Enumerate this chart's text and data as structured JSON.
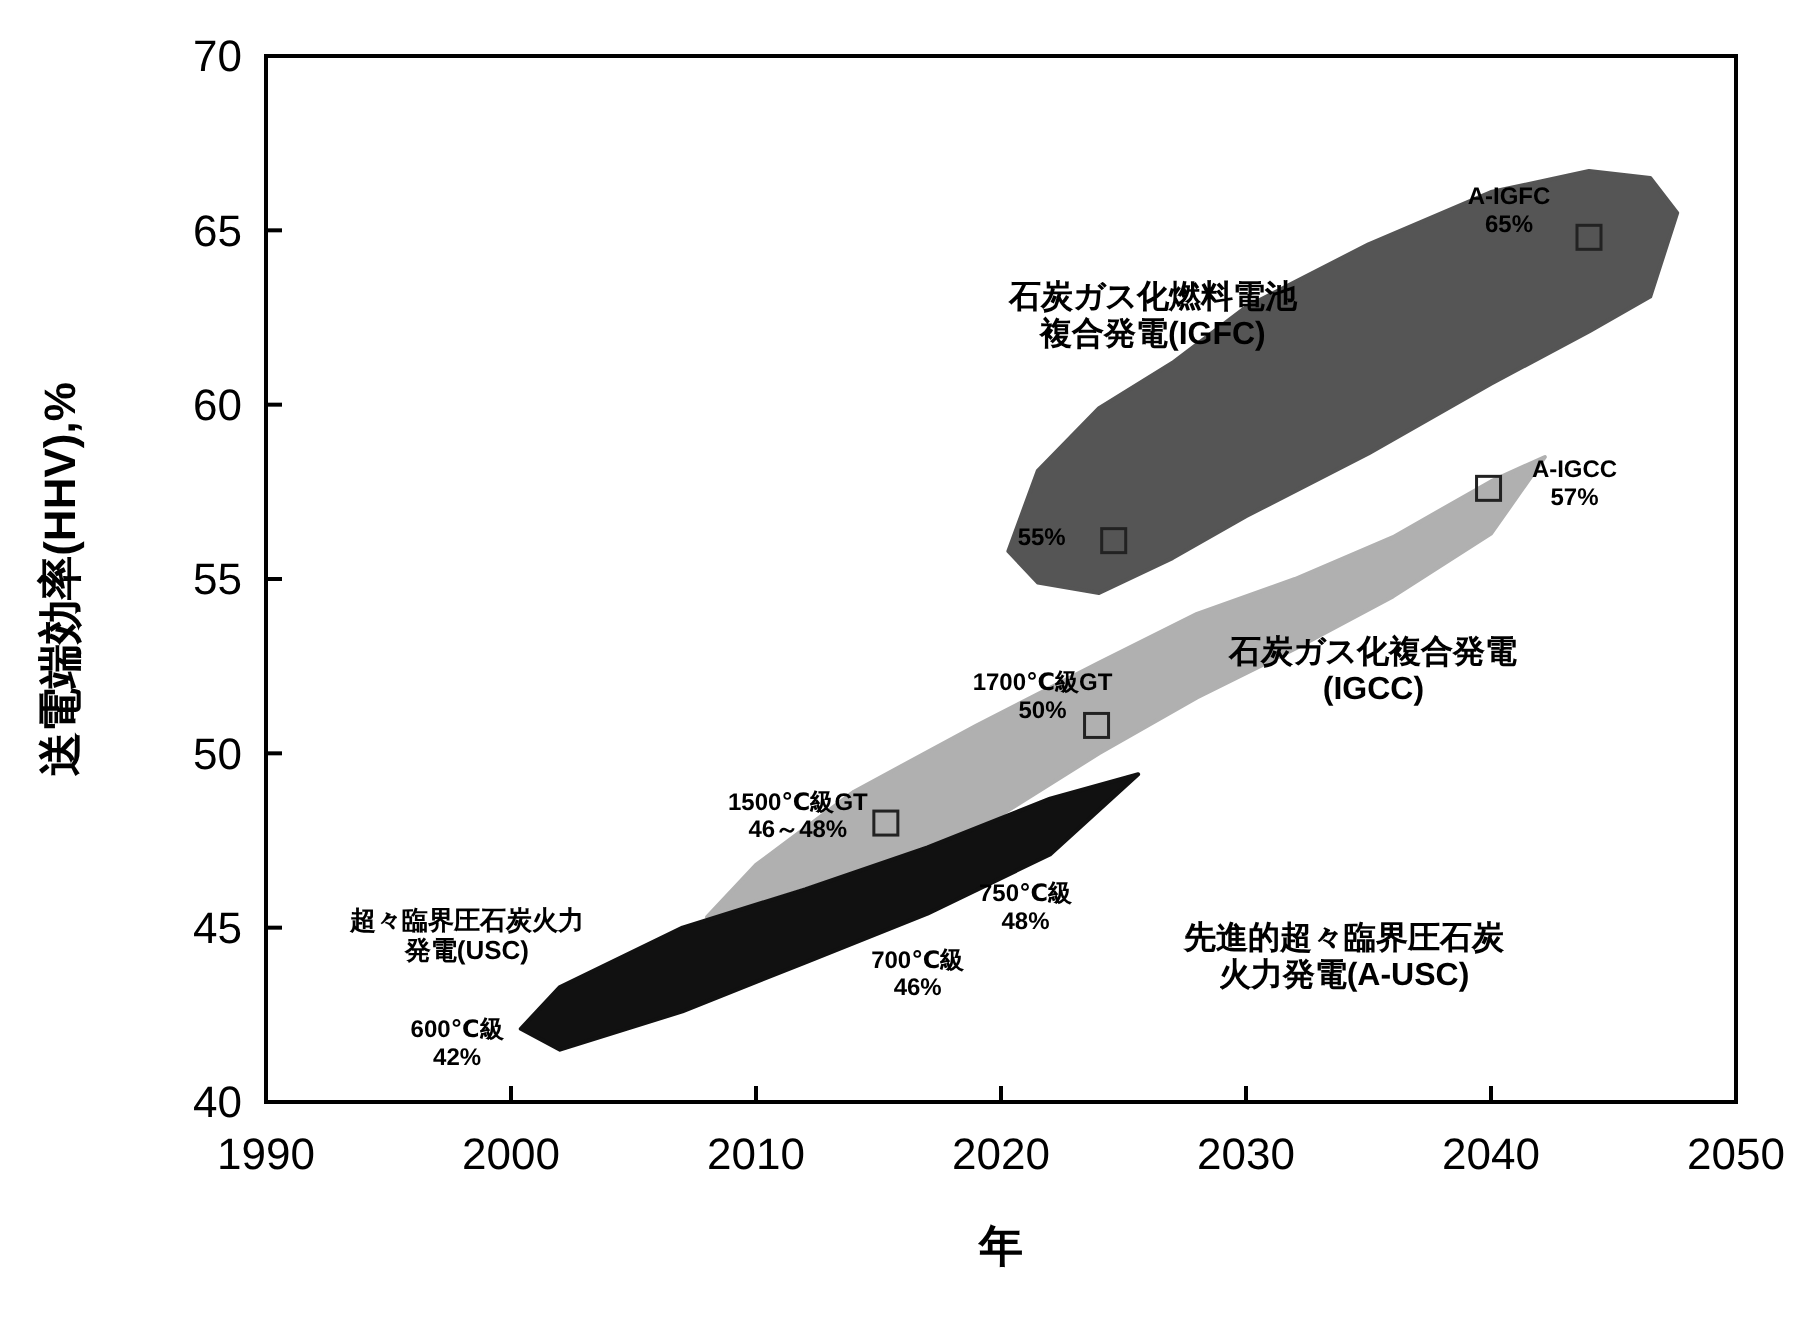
{
  "chart_data": {
    "type": "area",
    "xlabel": "年",
    "ylabel": "送電端効率(HHV),%",
    "xlim": [
      1990,
      2050
    ],
    "ylim": [
      40,
      70
    ],
    "xticks": [
      1990,
      2000,
      2010,
      2020,
      2030,
      2040,
      2050
    ],
    "yticks": [
      40,
      45,
      50,
      55,
      60,
      65,
      70
    ],
    "series": [
      {
        "color": "#555555",
        "x": [
          2020.3,
          2021.5,
          2024,
          2027,
          2030,
          2035,
          2040,
          2044,
          2046.5,
          2047.6,
          2046.5,
          2044,
          2040,
          2035,
          2030,
          2027,
          2024,
          2021.5,
          2020.3
        ],
        "values": [
          55.8,
          58.1,
          59.9,
          61.2,
          62.8,
          64.6,
          66.1,
          66.7,
          66.5,
          65.5,
          63.1,
          62.1,
          60.6,
          58.6,
          56.8,
          55.6,
          54.6,
          54.9,
          55.8
        ]
      },
      {
        "color": "#b0b0b0",
        "x": [
          2008,
          2010,
          2014,
          2019,
          2024,
          2028,
          2032,
          2036,
          2040,
          2042.2,
          2040,
          2036,
          2032,
          2028,
          2024,
          2019,
          2008
        ],
        "values": [
          45.3,
          46.8,
          48.9,
          50.8,
          52.6,
          54.0,
          55.0,
          56.2,
          57.8,
          58.5,
          56.3,
          54.5,
          53.0,
          51.6,
          50.0,
          47.8,
          45.3
        ]
      },
      {
        "color": "#111111",
        "x": [
          2000.4,
          2002,
          2007,
          2012,
          2017,
          2022,
          2025.6,
          2022,
          2017,
          2012,
          2007,
          2002,
          2000.4
        ],
        "values": [
          42.1,
          43.3,
          45.0,
          46.1,
          47.3,
          48.7,
          49.4,
          47.1,
          45.4,
          44.0,
          42.6,
          41.5,
          42.1
        ]
      },
      {
        "type": "scatter",
        "color": "#222222",
        "marker": "square",
        "x": [
          2044,
          2024.6,
          2039.9,
          2023.9,
          2015.3
        ],
        "values": [
          64.8,
          56.1,
          57.6,
          50.8,
          48.0
        ]
      }
    ],
    "annotations": [
      {
        "text": "A-IGFC\n65%",
        "x": 2044,
        "y": 64.8
      },
      "石炭ガス化燃料電池複合発電(IGFC)",
      {
        "text": "55%",
        "x": 2024.6,
        "y": 56.1
      },
      {
        "text": "A-IGCC\n57%",
        "x": 2039.9,
        "y": 57.6
      },
      "石炭ガス化複合発電(IGCC)",
      {
        "text": "1700℃級GT\n50%",
        "x": 2023.9,
        "y": 50.8
      },
      {
        "text": "1500℃級GT\n46～48%",
        "x": 2015.3,
        "y": 48.0
      },
      "750℃級\n48%",
      "700℃級\n46%",
      "先進的超々臨界圧石炭火力発電(A-USC)",
      "超々臨界圧石炭火力発電(USC)",
      "600℃級\n42%"
    ]
  }
}
